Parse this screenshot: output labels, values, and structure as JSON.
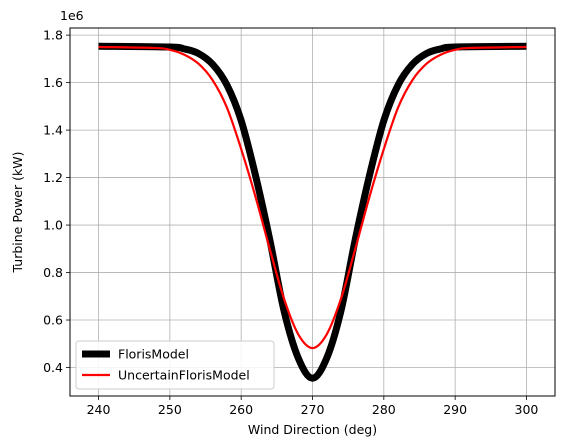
{
  "chart_data": {
    "type": "line",
    "title": "",
    "xlabel": "Wind Direction (deg)",
    "ylabel": "Turbine Power (kW)",
    "y_offset_label": "1e6",
    "xlim": [
      236,
      304
    ],
    "ylim": [
      280000,
      1830000
    ],
    "x_ticks": [
      240,
      250,
      260,
      270,
      280,
      290,
      300
    ],
    "y_ticks": [
      400000,
      600000,
      800000,
      1000000,
      1200000,
      1400000,
      1600000,
      1800000
    ],
    "y_tick_labels": [
      "0.4",
      "0.6",
      "0.8",
      "1.0",
      "1.2",
      "1.4",
      "1.6",
      "1.8"
    ],
    "grid": true,
    "legend_position": "lower-left",
    "series": [
      {
        "name": "FlorisModel",
        "color": "#000000",
        "x": [
          240,
          250,
          252,
          254,
          256,
          258,
          260,
          262,
          264,
          266,
          268,
          270,
          272,
          274,
          276,
          278,
          280,
          282,
          284,
          286,
          288,
          290,
          300
        ],
        "y": [
          1753000,
          1750000,
          1742000,
          1723000,
          1677000,
          1590000,
          1440000,
          1210000,
          940000,
          640000,
          440000,
          355000,
          440000,
          640000,
          940000,
          1210000,
          1440000,
          1590000,
          1677000,
          1723000,
          1742000,
          1750000,
          1753000
        ]
      },
      {
        "name": "UncertainFlorisModel",
        "color": "#ff0000",
        "x": [
          240,
          248,
          250,
          252,
          254,
          256,
          258,
          260,
          262,
          264,
          266,
          268,
          270,
          272,
          274,
          276,
          278,
          280,
          282,
          284,
          286,
          288,
          290,
          292,
          300
        ],
        "y": [
          1750000,
          1746000,
          1738000,
          1718000,
          1680000,
          1610000,
          1495000,
          1320000,
          1120000,
          900000,
          690000,
          540000,
          482000,
          540000,
          690000,
          900000,
          1120000,
          1320000,
          1495000,
          1610000,
          1680000,
          1718000,
          1738000,
          1746000,
          1750000
        ]
      }
    ]
  }
}
